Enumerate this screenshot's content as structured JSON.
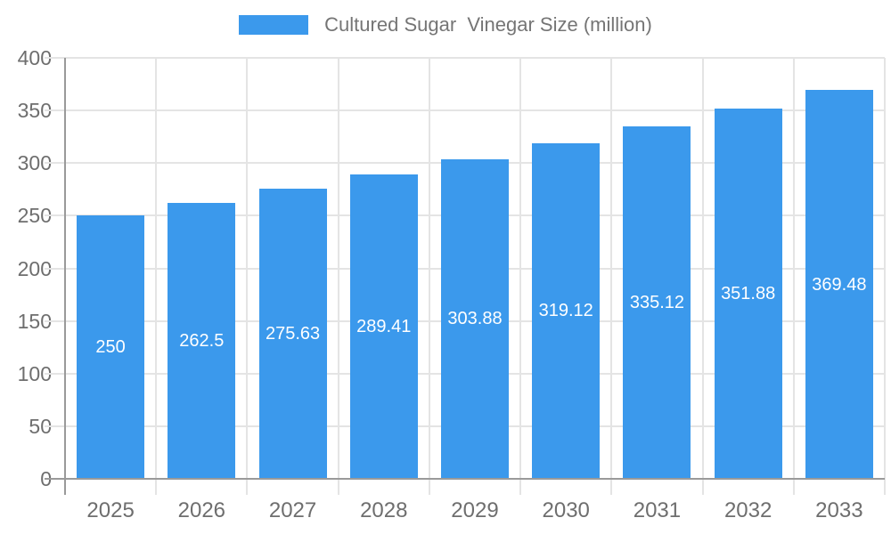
{
  "chart_data": {
    "type": "bar",
    "title": "",
    "legend": {
      "label": "Cultured Sugar  Vinegar Size (million)",
      "position": "top"
    },
    "categories": [
      "2025",
      "2026",
      "2027",
      "2028",
      "2029",
      "2030",
      "2031",
      "2032",
      "2033"
    ],
    "series": [
      {
        "name": "Cultured Sugar  Vinegar Size (million)",
        "values": [
          250,
          262.5,
          275.63,
          289.41,
          303.88,
          319.12,
          335.12,
          351.88,
          369.48
        ]
      }
    ],
    "value_labels": [
      "250",
      "262.5",
      "275.63",
      "289.41",
      "303.88",
      "319.12",
      "335.12",
      "351.88",
      "369.48"
    ],
    "xlabel": "",
    "ylabel": "",
    "ylim": [
      0,
      400
    ],
    "ytick_interval": 50,
    "yticks": [
      "0",
      "50",
      "100",
      "150",
      "200",
      "250",
      "300",
      "350",
      "400"
    ],
    "grid": true,
    "colors": {
      "bar": "#3b99ec",
      "axis_text": "#6e6e6e",
      "grid_line": "#e4e4e4",
      "axis_line": "#9a9a9a",
      "value_label": "#ffffff",
      "background": "#ffffff"
    }
  }
}
